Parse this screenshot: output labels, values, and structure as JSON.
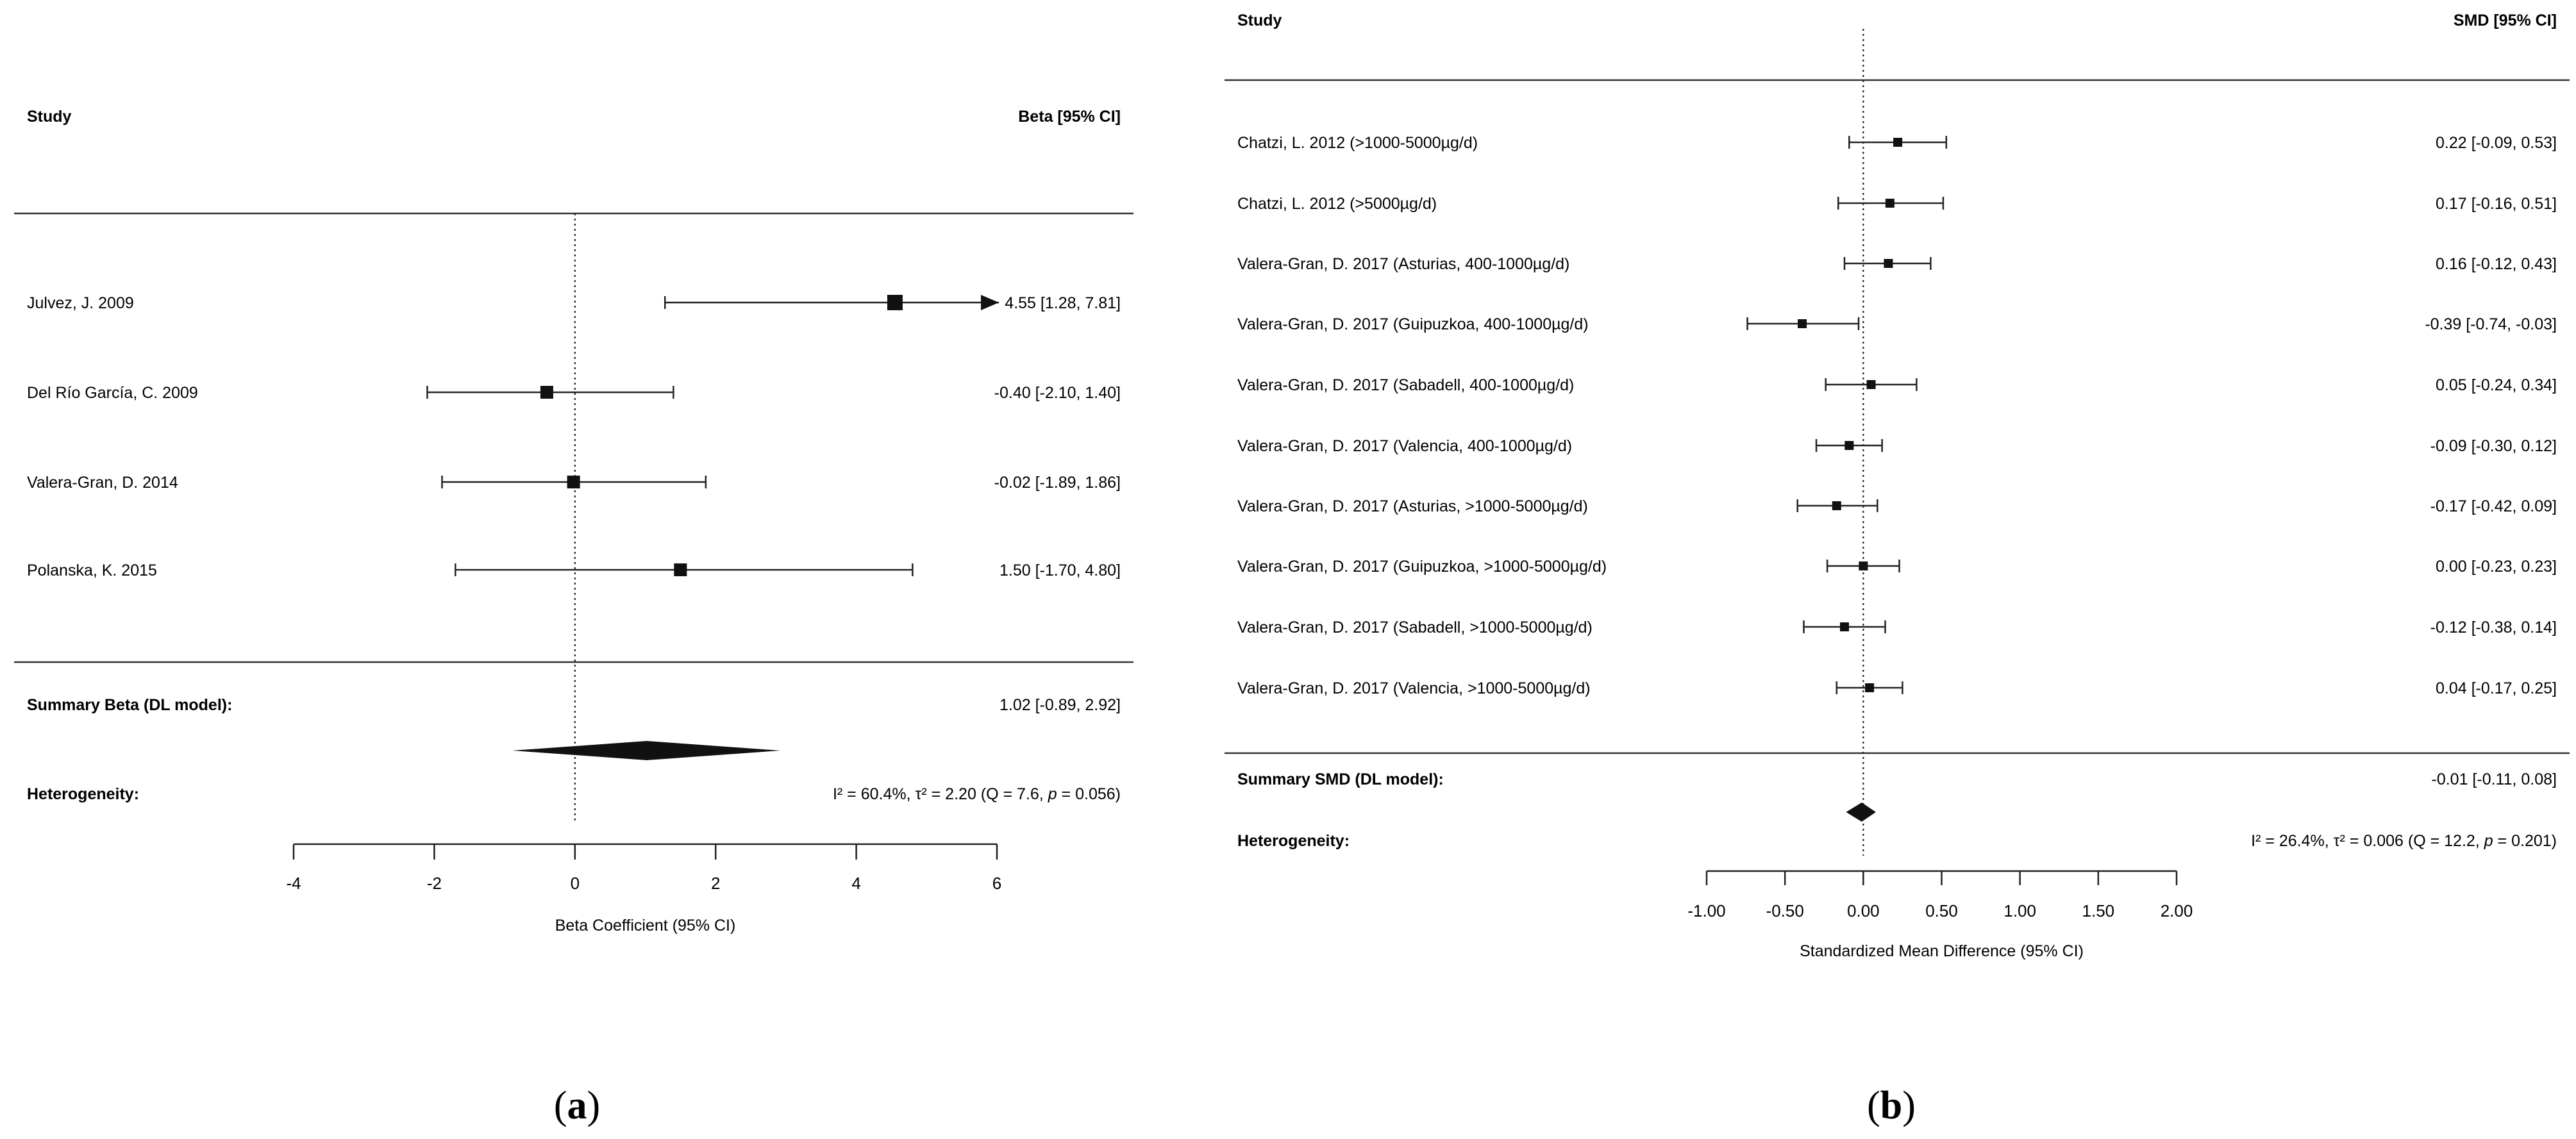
{
  "chart_data": [
    {
      "type": "forest",
      "panel_label": "(a)",
      "panel_label_parts": {
        "open": "(",
        "letter": "a",
        "close": ")"
      },
      "header_study": "Study",
      "header_effect": "Beta [95% CI]",
      "xlabel": "Beta Coefficient (95% CI)",
      "xlim": [
        -4,
        6
      ],
      "xticks": [
        -4,
        -2,
        0,
        2,
        4,
        6
      ],
      "xtick_labels": [
        "-4",
        "-2",
        "0",
        "2",
        "4",
        "6"
      ],
      "studies": [
        {
          "name": "Julvez, J. 2009",
          "est": 4.55,
          "lo": 1.28,
          "hi": 7.81,
          "arrow_right": true,
          "ci_text": "4.55 [1.28, 7.81]"
        },
        {
          "name": "Del Río García, C. 2009",
          "est": -0.4,
          "lo": -2.1,
          "hi": 1.4,
          "ci_text": "-0.40 [-2.10, 1.40]"
        },
        {
          "name": "Valera-Gran, D. 2014",
          "est": -0.02,
          "lo": -1.89,
          "hi": 1.86,
          "ci_text": "-0.02 [-1.89, 1.86]"
        },
        {
          "name": "Polanska, K. 2015",
          "est": 1.5,
          "lo": -1.7,
          "hi": 4.8,
          "ci_text": "1.50 [-1.70, 4.80]"
        }
      ],
      "summary": {
        "label": "Summary Beta (DL model):",
        "est": 1.02,
        "lo": -0.89,
        "hi": 2.92,
        "ci_text": "1.02 [-0.89, 2.92]"
      },
      "heterogeneity": {
        "label": "Heterogeneity:",
        "text": "I² = 60.4%, τ² = 2.20 (Q = 7.6, ",
        "p_label": "p",
        "p_value": " = 0.056)"
      }
    },
    {
      "type": "forest",
      "panel_label": "(b)",
      "panel_label_parts": {
        "open": "(",
        "letter": "b",
        "close": ")"
      },
      "header_study": "Study",
      "header_effect": "SMD [95% CI]",
      "xlabel": "Standardized Mean Difference (95% CI)",
      "xlim": [
        -1.0,
        2.0
      ],
      "xticks": [
        -1.0,
        -0.5,
        0.0,
        0.5,
        1.0,
        1.5,
        2.0
      ],
      "xtick_labels": [
        "-1.00",
        "-0.50",
        "0.00",
        "0.50",
        "1.00",
        "1.50",
        "2.00"
      ],
      "studies": [
        {
          "name": "Chatzi, L. 2012 (>1000-5000µg/d)",
          "est": 0.22,
          "lo": -0.09,
          "hi": 0.53,
          "ci_text": "0.22 [-0.09, 0.53]"
        },
        {
          "name": "Chatzi, L. 2012 (>5000µg/d)",
          "est": 0.17,
          "lo": -0.16,
          "hi": 0.51,
          "ci_text": "0.17 [-0.16, 0.51]"
        },
        {
          "name": "Valera-Gran, D. 2017 (Asturias, 400-1000µg/d)",
          "est": 0.16,
          "lo": -0.12,
          "hi": 0.43,
          "ci_text": "0.16 [-0.12, 0.43]"
        },
        {
          "name": "Valera-Gran, D. 2017 (Guipuzkoa, 400-1000µg/d)",
          "est": -0.39,
          "lo": -0.74,
          "hi": -0.03,
          "ci_text": "-0.39 [-0.74, -0.03]"
        },
        {
          "name": "Valera-Gran, D. 2017 (Sabadell, 400-1000µg/d)",
          "est": 0.05,
          "lo": -0.24,
          "hi": 0.34,
          "ci_text": "0.05 [-0.24, 0.34]"
        },
        {
          "name": "Valera-Gran, D. 2017 (Valencia, 400-1000µg/d)",
          "est": -0.09,
          "lo": -0.3,
          "hi": 0.12,
          "ci_text": "-0.09 [-0.30, 0.12]"
        },
        {
          "name": "Valera-Gran, D. 2017 (Asturias, >1000-5000µg/d)",
          "est": -0.17,
          "lo": -0.42,
          "hi": 0.09,
          "ci_text": "-0.17 [-0.42, 0.09]"
        },
        {
          "name": "Valera-Gran, D. 2017 (Guipuzkoa, >1000-5000µg/d)",
          "est": 0.0,
          "lo": -0.23,
          "hi": 0.23,
          "ci_text": "0.00 [-0.23, 0.23]"
        },
        {
          "name": "Valera-Gran, D. 2017 (Sabadell, >1000-5000µg/d)",
          "est": -0.12,
          "lo": -0.38,
          "hi": 0.14,
          "ci_text": "-0.12 [-0.38, 0.14]"
        },
        {
          "name": "Valera-Gran, D. 2017 (Valencia, >1000-5000µg/d)",
          "est": 0.04,
          "lo": -0.17,
          "hi": 0.25,
          "ci_text": "0.04 [-0.17, 0.25]"
        }
      ],
      "summary": {
        "label": "Summary SMD (DL model):",
        "est": -0.01,
        "lo": -0.11,
        "hi": 0.08,
        "ci_text": "-0.01 [-0.11, 0.08]"
      },
      "heterogeneity": {
        "label": "Heterogeneity:",
        "text": "I² = 26.4%, τ² = 0.006 (Q = 12.2, ",
        "p_label": "p",
        "p_value": " = 0.201)"
      }
    }
  ]
}
